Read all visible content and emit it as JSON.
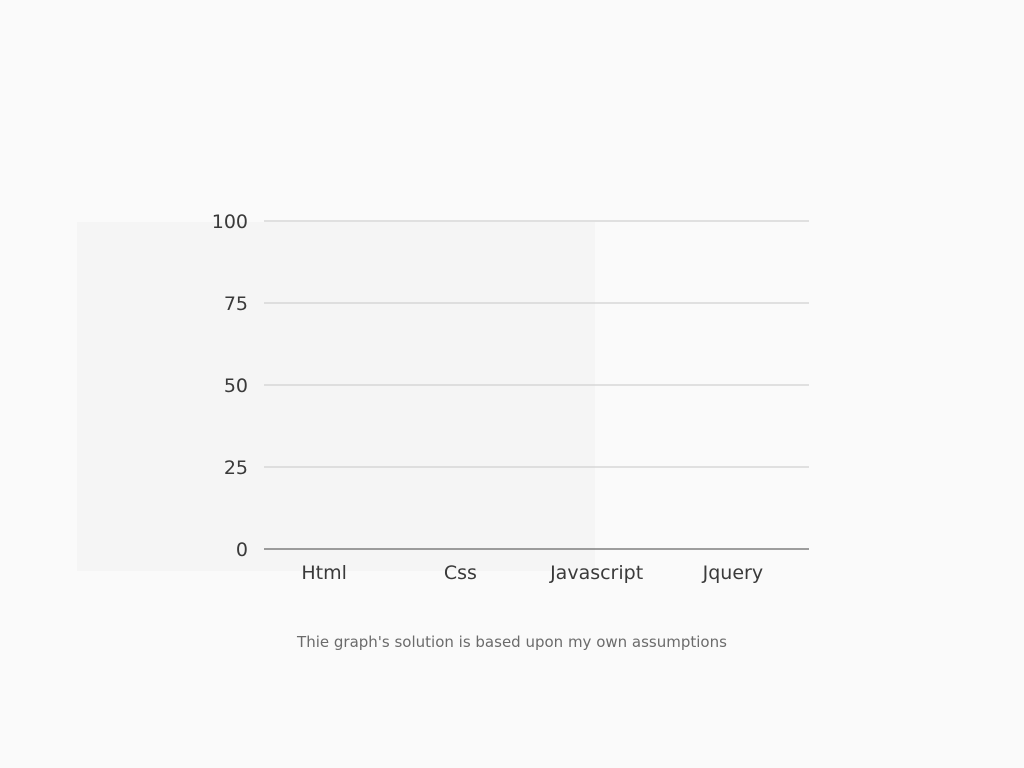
{
  "caption": "Thie graph's solution is based upon my own assumptions",
  "colors": {
    "background": "#fafafa",
    "panel": "#f5f5f5",
    "gridline": "#c6c6c6",
    "baseline": "#666666",
    "text": "#3a3a3a",
    "caption": "#6b6b6b"
  },
  "chart_data": {
    "type": "bar",
    "title": "",
    "xlabel": "",
    "ylabel": "",
    "categories": [
      "Html",
      "Css",
      "Javascript",
      "Jquery"
    ],
    "values": [
      0,
      0,
      0,
      0
    ],
    "ylim": [
      0,
      100
    ],
    "yticks": [
      0,
      25,
      50,
      75,
      100
    ],
    "grid": true,
    "legend": "none"
  }
}
